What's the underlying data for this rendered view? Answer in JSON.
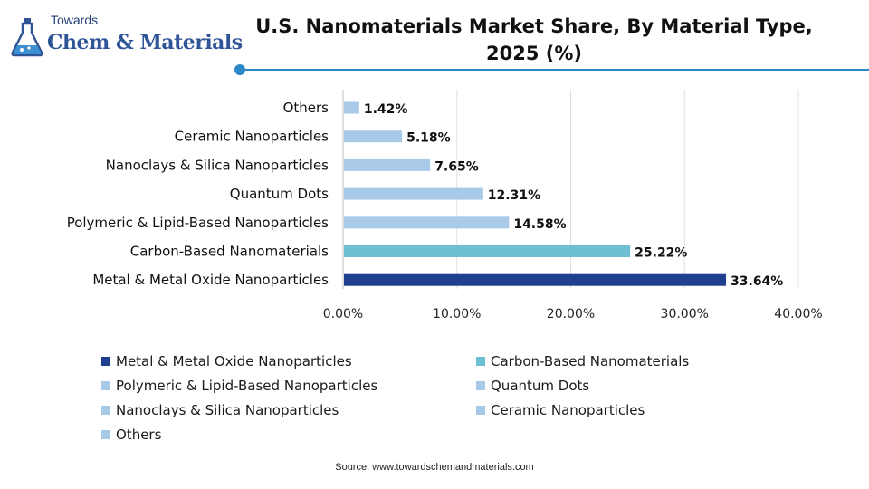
{
  "brand": {
    "top": "Towards",
    "main": "Chem & Materials"
  },
  "source_text": "Source: www.towardschemandmaterials.com",
  "colors": {
    "dark_blue": "#1f3f8f",
    "teal": "#6fbfd3",
    "light_blue": "#a9c9e8",
    "accent": "#2e88c8"
  },
  "chart_data": {
    "type": "bar",
    "orientation": "horizontal",
    "title": "U.S. Nanomaterials Market Share, By Material Type, 2025 (%)",
    "categories": [
      "Metal & Metal Oxide Nanoparticles",
      "Carbon-Based Nanomaterials",
      "Polymeric & Lipid-Based Nanoparticles",
      "Quantum Dots",
      "Nanoclays & Silica Nanoparticles",
      "Ceramic Nanoparticles",
      "Others"
    ],
    "values": [
      33.64,
      25.22,
      14.58,
      12.31,
      7.65,
      5.18,
      1.42
    ],
    "data_labels": [
      "33.64%",
      "25.22%",
      "14.58%",
      "12.31%",
      "7.65%",
      "5.18%",
      "1.42%"
    ],
    "bar_colors": [
      "#1f3f8f",
      "#6fbfd3",
      "#a9c9e8",
      "#a9c9e8",
      "#a9c9e8",
      "#a9c9e8",
      "#a9c9e8"
    ],
    "xlim": [
      0,
      40
    ],
    "xticks": [
      "0.00%",
      "10.00%",
      "20.00%",
      "30.00%",
      "40.00%"
    ],
    "xlabel": "",
    "ylabel": "",
    "grid": true,
    "legend_placement": "bottom"
  }
}
